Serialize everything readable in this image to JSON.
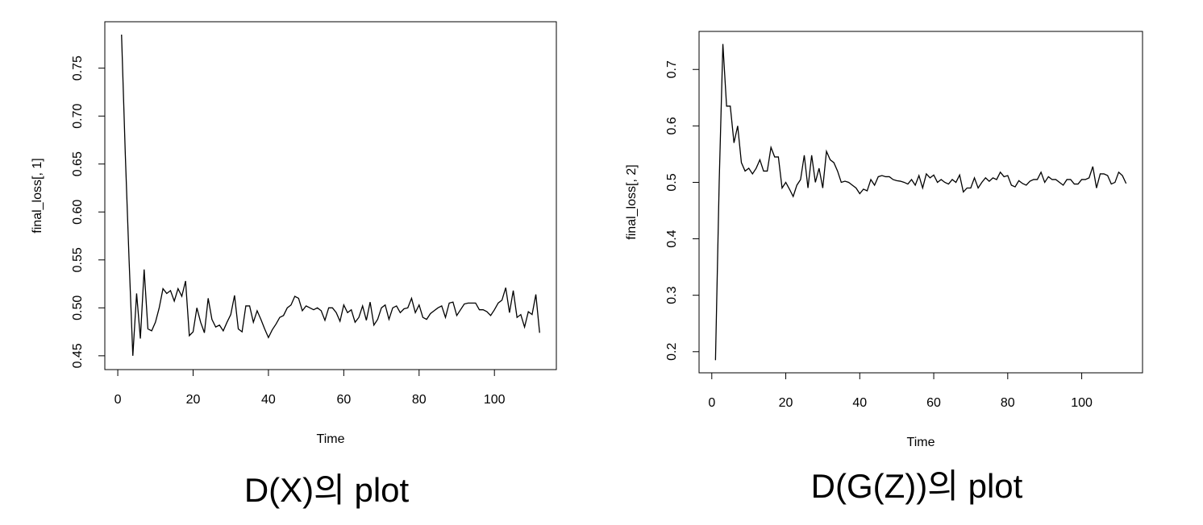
{
  "chart_data": [
    {
      "type": "line",
      "xlabel": "Time",
      "ylabel": "final_loss[, 1]",
      "caption": "D(X)의 plot",
      "color": "#000000",
      "x": [
        1,
        2,
        3,
        4,
        5,
        6,
        7,
        8,
        9,
        10,
        11,
        12,
        13,
        14,
        15,
        16,
        17,
        18,
        19,
        20,
        21,
        22,
        23,
        24,
        25,
        26,
        27,
        28,
        29,
        30,
        31,
        32,
        33,
        34,
        35,
        36,
        37,
        38,
        39,
        40,
        41,
        42,
        43,
        44,
        45,
        46,
        47,
        48,
        49,
        50,
        51,
        52,
        53,
        54,
        55,
        56,
        57,
        58,
        59,
        60,
        61,
        62,
        63,
        64,
        65,
        66,
        67,
        68,
        69,
        70,
        71,
        72,
        73,
        74,
        75,
        76,
        77,
        78,
        79,
        80,
        81,
        82,
        83,
        84,
        85,
        86,
        87,
        88,
        89,
        90,
        91,
        92,
        93,
        94,
        95,
        96,
        97,
        98,
        99,
        100,
        101,
        102,
        103,
        104,
        105,
        106,
        107,
        108,
        109,
        110,
        111,
        112
      ],
      "values": [
        0.785,
        0.66,
        0.55,
        0.45,
        0.515,
        0.468,
        0.54,
        0.478,
        0.476,
        0.485,
        0.5,
        0.52,
        0.515,
        0.518,
        0.507,
        0.52,
        0.512,
        0.528,
        0.471,
        0.475,
        0.5,
        0.485,
        0.474,
        0.51,
        0.488,
        0.48,
        0.482,
        0.476,
        0.485,
        0.493,
        0.513,
        0.478,
        0.475,
        0.502,
        0.502,
        0.485,
        0.497,
        0.488,
        0.478,
        0.469,
        0.477,
        0.483,
        0.49,
        0.492,
        0.5,
        0.503,
        0.512,
        0.51,
        0.497,
        0.502,
        0.5,
        0.498,
        0.5,
        0.497,
        0.487,
        0.5,
        0.5,
        0.495,
        0.486,
        0.503,
        0.495,
        0.498,
        0.485,
        0.49,
        0.502,
        0.487,
        0.506,
        0.482,
        0.488,
        0.5,
        0.503,
        0.488,
        0.5,
        0.502,
        0.495,
        0.499,
        0.5,
        0.51,
        0.495,
        0.503,
        0.49,
        0.488,
        0.494,
        0.497,
        0.5,
        0.502,
        0.49,
        0.505,
        0.506,
        0.492,
        0.498,
        0.504,
        0.505,
        0.505,
        0.505,
        0.498,
        0.498,
        0.496,
        0.492,
        0.498,
        0.505,
        0.508,
        0.521,
        0.495,
        0.518,
        0.49,
        0.493,
        0.48,
        0.496,
        0.493,
        0.514,
        0.474
      ],
      "xlim": [
        -3.44,
        116.44
      ],
      "xticks": [
        0,
        20,
        40,
        60,
        80,
        100
      ],
      "ylim": [
        0.4356,
        0.7984
      ],
      "yticks": [
        0.45,
        {
          "value": 0.5,
          "label": "0.50"
        },
        0.55,
        {
          "value": 0.6,
          "label": "0.60"
        },
        0.65,
        {
          "value": 0.7,
          "label": "0.70"
        },
        0.75
      ]
    },
    {
      "type": "line",
      "xlabel": "Time",
      "ylabel": "final_loss[, 2]",
      "caption": "D(G(Z))의 plot",
      "color": "#000000",
      "x": [
        1,
        2,
        3,
        4,
        5,
        6,
        7,
        8,
        9,
        10,
        11,
        12,
        13,
        14,
        15,
        16,
        17,
        18,
        19,
        20,
        21,
        22,
        23,
        24,
        25,
        26,
        27,
        28,
        29,
        30,
        31,
        32,
        33,
        34,
        35,
        36,
        37,
        38,
        39,
        40,
        41,
        42,
        43,
        44,
        45,
        46,
        47,
        48,
        49,
        50,
        51,
        52,
        53,
        54,
        55,
        56,
        57,
        58,
        59,
        60,
        61,
        62,
        63,
        64,
        65,
        66,
        67,
        68,
        69,
        70,
        71,
        72,
        73,
        74,
        75,
        76,
        77,
        78,
        79,
        80,
        81,
        82,
        83,
        84,
        85,
        86,
        87,
        88,
        89,
        90,
        91,
        92,
        93,
        94,
        95,
        96,
        97,
        98,
        99,
        100,
        101,
        102,
        103,
        104,
        105,
        106,
        107,
        108,
        109,
        110,
        111,
        112
      ],
      "values": [
        0.185,
        0.5,
        0.745,
        0.635,
        0.635,
        0.57,
        0.6,
        0.535,
        0.52,
        0.525,
        0.515,
        0.525,
        0.54,
        0.52,
        0.52,
        0.562,
        0.545,
        0.545,
        0.49,
        0.5,
        0.488,
        0.475,
        0.495,
        0.505,
        0.548,
        0.49,
        0.548,
        0.5,
        0.525,
        0.49,
        0.555,
        0.54,
        0.535,
        0.52,
        0.5,
        0.502,
        0.5,
        0.495,
        0.49,
        0.48,
        0.488,
        0.485,
        0.505,
        0.495,
        0.51,
        0.512,
        0.51,
        0.51,
        0.505,
        0.503,
        0.502,
        0.5,
        0.497,
        0.505,
        0.495,
        0.512,
        0.49,
        0.515,
        0.508,
        0.513,
        0.5,
        0.505,
        0.5,
        0.497,
        0.505,
        0.5,
        0.513,
        0.483,
        0.49,
        0.49,
        0.508,
        0.49,
        0.5,
        0.508,
        0.502,
        0.508,
        0.505,
        0.518,
        0.51,
        0.512,
        0.495,
        0.492,
        0.503,
        0.498,
        0.495,
        0.502,
        0.505,
        0.505,
        0.518,
        0.5,
        0.51,
        0.505,
        0.505,
        0.5,
        0.495,
        0.505,
        0.505,
        0.497,
        0.497,
        0.505,
        0.505,
        0.508,
        0.528,
        0.49,
        0.515,
        0.515,
        0.512,
        0.497,
        0.5,
        0.518,
        0.512,
        0.498
      ],
      "xlim": [
        -3.44,
        116.44
      ],
      "xticks": [
        0,
        20,
        40,
        60,
        80,
        100
      ],
      "ylim": [
        0.1626,
        0.7674
      ],
      "yticks": [
        0.2,
        0.3,
        0.4,
        0.5,
        0.6,
        0.7
      ]
    }
  ]
}
